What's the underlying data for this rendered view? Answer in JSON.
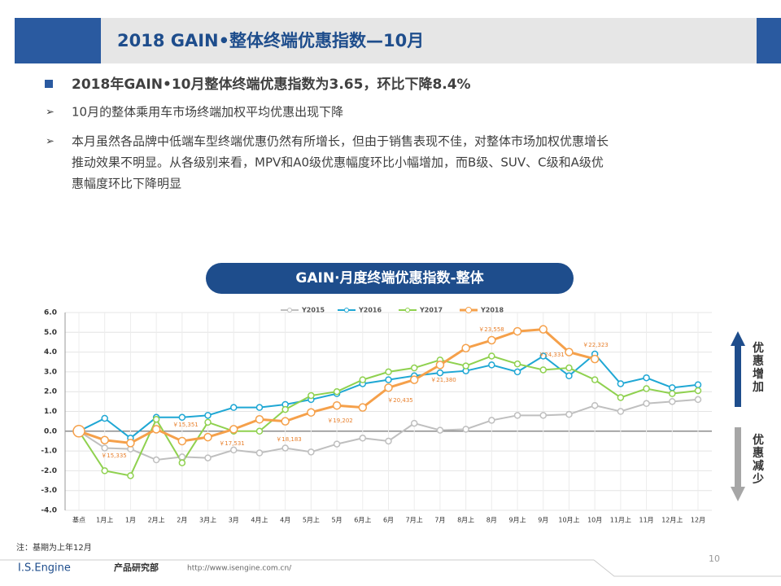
{
  "header": {
    "title": "2018 GAIN•整体终端优惠指数—10月"
  },
  "bullets": {
    "main": "2018年GAIN•10月整体终端优惠指数为3.65，环比下降8.4%",
    "items": [
      "10月的整体乘用车市场终端加权平均优惠出现下降",
      [
        "本月虽然各品牌中低端车型终端优惠仍然有所增长，但由于销售表现不佳，对整体市场加权优惠增长",
        "推动效果不明显。从各级别来看，MPV和A0级优惠幅度环比小幅增加，而B级、SUV、C级和A级优",
        "惠幅度环比下降明显"
      ]
    ]
  },
  "chart_data": {
    "type": "line",
    "title": "GAIN·月度终端优惠指数-整体",
    "categories": [
      "基点",
      "1月上",
      "1月",
      "2月上",
      "2月",
      "3月上",
      "3月",
      "4月上",
      "4月",
      "5月上",
      "5月",
      "6月上",
      "6月",
      "7月上",
      "7月",
      "8月上",
      "8月",
      "9月上",
      "9月",
      "10月上",
      "10月",
      "11月上",
      "11月",
      "12月上",
      "12月"
    ],
    "series": [
      {
        "name": "Y2015",
        "color": "#bfbfbf",
        "values": [
          0,
          -0.85,
          -0.9,
          -1.45,
          -1.3,
          -1.35,
          -0.95,
          -1.1,
          -0.85,
          -1.05,
          -0.65,
          -0.35,
          -0.5,
          0.4,
          0.05,
          0.1,
          0.55,
          0.8,
          0.8,
          0.85,
          1.3,
          1.0,
          1.4,
          1.5,
          1.6
        ]
      },
      {
        "name": "Y2016",
        "color": "#1fa7d4",
        "values": [
          0,
          0.65,
          -0.35,
          0.7,
          0.7,
          0.8,
          1.2,
          1.2,
          1.35,
          1.6,
          1.9,
          2.4,
          2.6,
          2.8,
          2.95,
          3.05,
          3.35,
          3.0,
          3.8,
          2.8,
          3.9,
          2.4,
          2.7,
          2.2,
          2.35
        ]
      },
      {
        "name": "Y2017",
        "color": "#8fd14f",
        "values": [
          0,
          -2.0,
          -2.25,
          0.6,
          -1.6,
          0.45,
          0.0,
          0.0,
          1.1,
          1.8,
          2.0,
          2.6,
          3.0,
          3.2,
          3.6,
          3.3,
          3.8,
          3.4,
          3.1,
          3.2,
          2.6,
          1.7,
          2.15,
          1.9,
          2.05
        ]
      },
      {
        "name": "Y2018",
        "color": "#f5a04a",
        "values": [
          0,
          -0.45,
          -0.6,
          0.1,
          -0.5,
          -0.3,
          0.1,
          0.6,
          0.5,
          0.95,
          1.3,
          1.2,
          2.2,
          2.6,
          3.35,
          4.2,
          4.6,
          5.05,
          5.15,
          4.0,
          3.65,
          null,
          null,
          null,
          null
        ]
      }
    ],
    "ylim": [
      -4,
      6
    ],
    "yticks": [
      {
        "value": -4,
        "label": "-4.0"
      },
      {
        "value": -3,
        "label": "-3.0"
      },
      {
        "value": -2,
        "label": "-2.0"
      },
      {
        "value": -1,
        "label": "-1.0"
      },
      {
        "value": 0,
        "label": "0.0"
      },
      {
        "value": 1,
        "label": "1.0"
      },
      {
        "value": 2,
        "label": "2.0"
      },
      {
        "value": 3,
        "label": "3.0"
      },
      {
        "value": 4,
        "label": "4.0"
      },
      {
        "value": 5,
        "label": "5.0"
      },
      {
        "value": 6,
        "label": "6.0"
      }
    ],
    "grid": true,
    "legend": "top",
    "annotations": [
      "￥15,335",
      "￥15,351",
      "￥17,531",
      "￥18,183",
      "￥19,202",
      "￥20,435",
      "￥21,380",
      "￥23,558",
      "￥24,331",
      "￥22,323"
    ],
    "side_labels": [
      "优惠增加",
      "优惠减少"
    ],
    "note": "注：基期为上年12月"
  },
  "footer": {
    "brand": "I.S.Engine",
    "dept": "产品研究部",
    "url": "http://www.isengine.com.cn/",
    "page": "10"
  }
}
